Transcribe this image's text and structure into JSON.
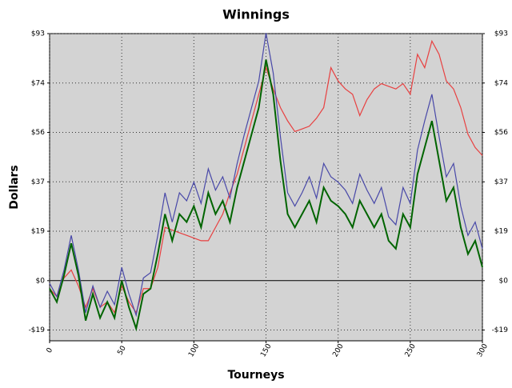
{
  "chart_data": {
    "type": "line",
    "title": "Winnings",
    "x_label": "Tourneys",
    "y_label": "Dollars",
    "x": [
      0,
      5,
      10,
      15,
      20,
      25,
      30,
      35,
      40,
      45,
      50,
      55,
      60,
      65,
      70,
      75,
      80,
      85,
      90,
      95,
      100,
      105,
      110,
      115,
      120,
      125,
      130,
      135,
      140,
      145,
      150,
      155,
      160,
      165,
      170,
      175,
      180,
      185,
      190,
      195,
      200,
      205,
      210,
      215,
      220,
      225,
      230,
      235,
      240,
      245,
      250,
      255,
      260,
      265,
      270,
      275,
      280,
      285,
      290,
      295,
      300
    ],
    "series": [
      {
        "color": "#4848a8",
        "values": [
          -1,
          -6,
          4,
          17,
          4,
          -12,
          -2,
          -10,
          -4,
          -9,
          5,
          -5,
          -13,
          1,
          3,
          17,
          33,
          22,
          33,
          30,
          37,
          29,
          42,
          34,
          39,
          31,
          44,
          55,
          65,
          75,
          93,
          78,
          54,
          33,
          28,
          33,
          39,
          31,
          44,
          39,
          37,
          34,
          29,
          40,
          34,
          29,
          35,
          24,
          21,
          35,
          29,
          49,
          60,
          70,
          54,
          39,
          44,
          28,
          17,
          22,
          12
        ]
      },
      {
        "color": "#006400",
        "values": [
          -3,
          -8,
          2,
          14,
          2,
          -15,
          -5,
          -14,
          -8,
          -14,
          0,
          -10,
          -18,
          -5,
          -3,
          10,
          25,
          15,
          25,
          22,
          28,
          20,
          33,
          25,
          30,
          22,
          35,
          45,
          55,
          65,
          83,
          70,
          45,
          25,
          20,
          25,
          30,
          22,
          35,
          30,
          28,
          25,
          20,
          30,
          25,
          20,
          25,
          15,
          12,
          25,
          20,
          40,
          50,
          60,
          45,
          30,
          35,
          20,
          10,
          15,
          5
        ]
      },
      {
        "color": "#e84040",
        "values": [
          -3,
          -6,
          1,
          4,
          -2,
          -10,
          -3,
          -10,
          -8,
          -12,
          -2,
          -8,
          -12,
          -3,
          -3,
          5,
          20,
          19,
          18,
          17,
          16,
          15,
          15,
          20,
          25,
          33,
          40,
          50,
          60,
          70,
          80,
          72,
          65,
          60,
          56,
          57,
          58,
          61,
          65,
          80,
          75,
          72,
          70,
          62,
          68,
          72,
          74,
          73,
          72,
          74,
          70,
          85,
          80,
          90,
          85,
          75,
          72,
          65,
          55,
          50,
          47
        ]
      }
    ],
    "xlim": [
      0,
      300
    ],
    "xticks": [
      0,
      50,
      100,
      150,
      200,
      250,
      300
    ],
    "ylim": [
      -22.6,
      92.8
    ],
    "yticks": [
      {
        "value": -18.56,
        "label": "-$19"
      },
      {
        "value": 0,
        "label": "$0"
      },
      {
        "value": 18.56,
        "label": "$19"
      },
      {
        "value": 37.12,
        "label": "$37"
      },
      {
        "value": 55.68,
        "label": "$56"
      },
      {
        "value": 74.24,
        "label": "$74"
      },
      {
        "value": 92.8,
        "label": "$93"
      }
    ],
    "grid": true
  }
}
